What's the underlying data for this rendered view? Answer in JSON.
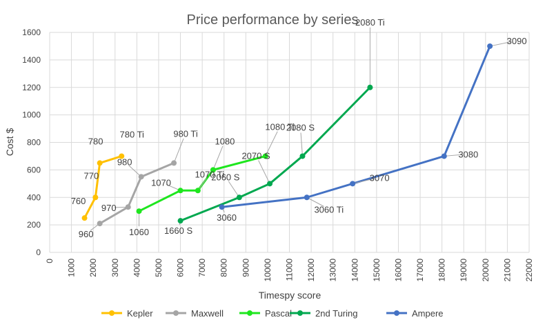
{
  "chart_data": {
    "type": "line",
    "title": "Price performance by series",
    "xlabel": "Timespy score",
    "ylabel": "Cost $",
    "xlim": [
      0,
      22000
    ],
    "ylim": [
      0,
      1600
    ],
    "x_ticks": [
      0,
      1000,
      2000,
      3000,
      4000,
      5000,
      6000,
      7000,
      8000,
      9000,
      10000,
      11000,
      12000,
      13000,
      14000,
      15000,
      16000,
      17000,
      18000,
      19000,
      20000,
      21000,
      22000
    ],
    "y_ticks": [
      0,
      200,
      400,
      600,
      800,
      1000,
      1200,
      1400,
      1600
    ],
    "grid": true,
    "legend_position": "bottom",
    "series": [
      {
        "name": "Kepler",
        "color": "#FFC000",
        "points": [
          {
            "x": 1600,
            "y": 250,
            "label": "760"
          },
          {
            "x": 2100,
            "y": 400,
            "label": "770"
          },
          {
            "x": 2300,
            "y": 650,
            "label": "780"
          },
          {
            "x": 3300,
            "y": 700,
            "label": "780 Ti"
          }
        ]
      },
      {
        "name": "Maxwell",
        "color": "#A5A5A5",
        "points": [
          {
            "x": 2300,
            "y": 210,
            "label": "960"
          },
          {
            "x": 3600,
            "y": 330,
            "label": "970"
          },
          {
            "x": 4200,
            "y": 550,
            "label": "980"
          },
          {
            "x": 5700,
            "y": 650,
            "label": "980 Ti"
          }
        ]
      },
      {
        "name": "Pascal",
        "color": "#1EE61E",
        "points": [
          {
            "x": 4100,
            "y": 300,
            "label": "1060"
          },
          {
            "x": 6000,
            "y": 450,
            "label": "1070"
          },
          {
            "x": 6800,
            "y": 450,
            "label": "1070 Ti"
          },
          {
            "x": 7500,
            "y": 600,
            "label": "1080"
          },
          {
            "x": 9900,
            "y": 700,
            "label": "1080 Ti"
          }
        ]
      },
      {
        "name": "2nd Turing",
        "color": "#00A84F",
        "points": [
          {
            "x": 6000,
            "y": 230,
            "label": "1660 S"
          },
          {
            "x": 8700,
            "y": 400,
            "label": "2060 S"
          },
          {
            "x": 10100,
            "y": 500,
            "label": "2070 S"
          },
          {
            "x": 11600,
            "y": 700,
            "label": "2080 S"
          },
          {
            "x": 14700,
            "y": 1200,
            "label": "2080 Ti"
          }
        ]
      },
      {
        "name": "Ampere",
        "color": "#4472C4",
        "points": [
          {
            "x": 7900,
            "y": 330,
            "label": "3060"
          },
          {
            "x": 11800,
            "y": 400,
            "label": "3060 Ti"
          },
          {
            "x": 13900,
            "y": 500,
            "label": "3070"
          },
          {
            "x": 18100,
            "y": 700,
            "label": "3080"
          },
          {
            "x": 20200,
            "y": 1500,
            "label": "3090"
          }
        ]
      }
    ]
  }
}
